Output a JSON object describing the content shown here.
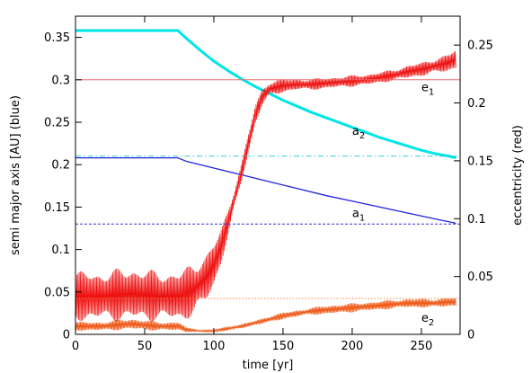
{
  "chart_data": {
    "type": "line",
    "xlabel": "time [yr]",
    "ylabel_left": "semi major axis [AU] (blue)",
    "ylabel_right": "eccentricity (red)",
    "xlim": [
      0,
      278
    ],
    "ylim_left": [
      0,
      0.375
    ],
    "ylim_right": [
      0,
      0.275
    ],
    "x_ticks": [
      "0",
      "50",
      "100",
      "150",
      "200",
      "250"
    ],
    "y_left_ticks": [
      "0",
      "0.05",
      "0.1",
      "0.15",
      "0.2",
      "0.25",
      "0.3",
      "0.35"
    ],
    "y_right_ticks": [
      "0",
      "0.05",
      "0.1",
      "0.15",
      "0.2",
      "0.25"
    ],
    "grid": false,
    "colors": {
      "a2": "#00e5e5",
      "a1": "#2222dd",
      "e1": "#ee1111",
      "e2": "#ee5511",
      "target_e1": "#ee6666",
      "target_a2": "#33cccc",
      "target_a1": "#3333dd",
      "target_e2": "#ee8844"
    },
    "annotations": [
      {
        "id": "e1",
        "base": "e",
        "sub": "1",
        "x": 250,
        "y_right": 0.21,
        "color": "#000000"
      },
      {
        "id": "a2",
        "base": "a",
        "sub": "2",
        "x": 200,
        "y_left": 0.235,
        "color": "#000000"
      },
      {
        "id": "a1",
        "base": "a",
        "sub": "1",
        "x": 200,
        "y_left": 0.138,
        "color": "#000000"
      },
      {
        "id": "e2",
        "base": "e",
        "sub": "2",
        "x": 250,
        "y_right": 0.011,
        "color": "#000000"
      }
    ],
    "series": [
      {
        "id": "a2",
        "axis": "left",
        "style": "thick",
        "x": [
          0,
          74,
          80,
          90,
          100,
          110,
          120,
          130,
          140,
          150,
          160,
          170,
          180,
          190,
          200,
          210,
          220,
          230,
          240,
          250,
          260,
          270,
          275
        ],
        "y": [
          0.358,
          0.358,
          0.349,
          0.335,
          0.322,
          0.311,
          0.301,
          0.292,
          0.284,
          0.276,
          0.269,
          0.262,
          0.256,
          0.25,
          0.244,
          0.238,
          0.232,
          0.227,
          0.222,
          0.217,
          0.213,
          0.21,
          0.208
        ]
      },
      {
        "id": "a1",
        "axis": "left",
        "style": "thin",
        "x": [
          0,
          74,
          80,
          100,
          120,
          140,
          160,
          180,
          200,
          220,
          240,
          260,
          275
        ],
        "y": [
          0.208,
          0.208,
          0.204,
          0.196,
          0.188,
          0.18,
          0.172,
          0.164,
          0.157,
          0.15,
          0.143,
          0.136,
          0.131
        ]
      },
      {
        "id": "e1",
        "axis": "right",
        "style": "oscillating",
        "x": [
          0,
          20,
          40,
          60,
          75,
          85,
          95,
          100,
          105,
          110,
          115,
          120,
          125,
          130,
          135,
          140,
          150,
          160,
          170,
          180,
          190,
          200,
          210,
          220,
          230,
          240,
          250,
          260,
          270,
          275
        ],
        "y": [
          0.033,
          0.033,
          0.035,
          0.033,
          0.033,
          0.038,
          0.05,
          0.06,
          0.075,
          0.095,
          0.118,
          0.14,
          0.165,
          0.19,
          0.205,
          0.212,
          0.215,
          0.216,
          0.216,
          0.217,
          0.218,
          0.219,
          0.22,
          0.222,
          0.224,
          0.227,
          0.229,
          0.232,
          0.235,
          0.238
        ],
        "amp": [
          0.022,
          0.022,
          0.024,
          0.022,
          0.022,
          0.024,
          0.022,
          0.02,
          0.016,
          0.013,
          0.01,
          0.009,
          0.009,
          0.009,
          0.008,
          0.007,
          0.006,
          0.005,
          0.005,
          0.005,
          0.005,
          0.005,
          0.005,
          0.005,
          0.005,
          0.006,
          0.006,
          0.007,
          0.008,
          0.009
        ]
      },
      {
        "id": "e2",
        "axis": "right",
        "style": "oscillating",
        "x": [
          0,
          20,
          40,
          60,
          75,
          80,
          90,
          100,
          110,
          120,
          130,
          140,
          150,
          160,
          170,
          180,
          190,
          200,
          210,
          220,
          230,
          240,
          250,
          260,
          270,
          275
        ],
        "y": [
          0.007,
          0.007,
          0.009,
          0.007,
          0.007,
          0.004,
          0.003,
          0.003,
          0.005,
          0.007,
          0.01,
          0.013,
          0.016,
          0.018,
          0.02,
          0.021,
          0.022,
          0.023,
          0.024,
          0.025,
          0.026,
          0.027,
          0.027,
          0.027,
          0.028,
          0.028
        ],
        "amp": [
          0.004,
          0.004,
          0.005,
          0.004,
          0.004,
          0.002,
          0.001,
          0.001,
          0.002,
          0.002,
          0.002,
          0.003,
          0.003,
          0.003,
          0.003,
          0.004,
          0.004,
          0.004,
          0.004,
          0.004,
          0.004,
          0.004,
          0.004,
          0.004,
          0.004,
          0.004
        ]
      }
    ],
    "reference_lines": [
      {
        "id": "target_e1",
        "axis": "right",
        "y": 0.22,
        "style": "solid"
      },
      {
        "id": "target_a2",
        "axis": "left",
        "y": 0.21,
        "style": "dashdot"
      },
      {
        "id": "target_a1",
        "axis": "left",
        "y": 0.13,
        "style": "dashed"
      },
      {
        "id": "target_e2",
        "axis": "right",
        "y": 0.031,
        "style": "dotted"
      }
    ]
  }
}
